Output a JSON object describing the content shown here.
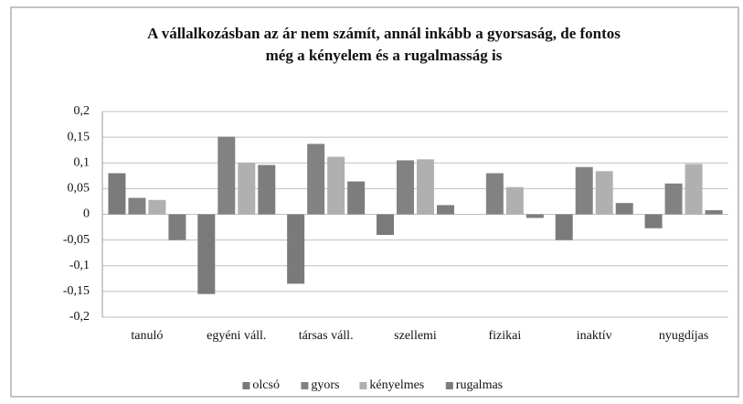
{
  "chart_data": {
    "type": "bar",
    "title": [
      "A vállalkozásban az ár nem számít, annál inkább a gyorsaság, de fontos",
      "még a kényelem és a rugalmasság is"
    ],
    "categories": [
      "tanuló",
      "egyéni váll.",
      "társas váll.",
      "szellemi",
      "fizikai",
      "inaktív",
      "nyugdíjas"
    ],
    "series": [
      {
        "name": "olcsó",
        "color": "#7a7a7a",
        "values": [
          0.08,
          -0.155,
          -0.135,
          -0.04,
          0,
          -0.05,
          -0.027
        ]
      },
      {
        "name": "gyors",
        "color": "#828282",
        "values": [
          0.032,
          0.151,
          0.137,
          0.105,
          0.08,
          0.092,
          0.06
        ]
      },
      {
        "name": "kényelmes",
        "color": "#b0b0b0",
        "values": [
          0.028,
          0.1,
          0.112,
          0.107,
          0.053,
          0.084,
          0.098
        ]
      },
      {
        "name": "rugalmas",
        "color": "#7d7d7d",
        "values": [
          -0.05,
          0.096,
          0.064,
          0.018,
          -0.007,
          0.022,
          0.008
        ]
      }
    ],
    "ylim": [
      -0.2,
      0.2
    ],
    "yticks": [
      {
        "value": -0.2,
        "label": "-0,2"
      },
      {
        "value": -0.15,
        "label": "-0,15"
      },
      {
        "value": -0.1,
        "label": "-0,1"
      },
      {
        "value": -0.05,
        "label": "-0,05"
      },
      0,
      {
        "value": 0.05,
        "label": "0,05"
      },
      {
        "value": 0.1,
        "label": "0,1"
      },
      {
        "value": 0.15,
        "label": "0,15"
      },
      {
        "value": 0.2,
        "label": "0,2"
      }
    ],
    "grid": true,
    "legend": "bottom"
  }
}
